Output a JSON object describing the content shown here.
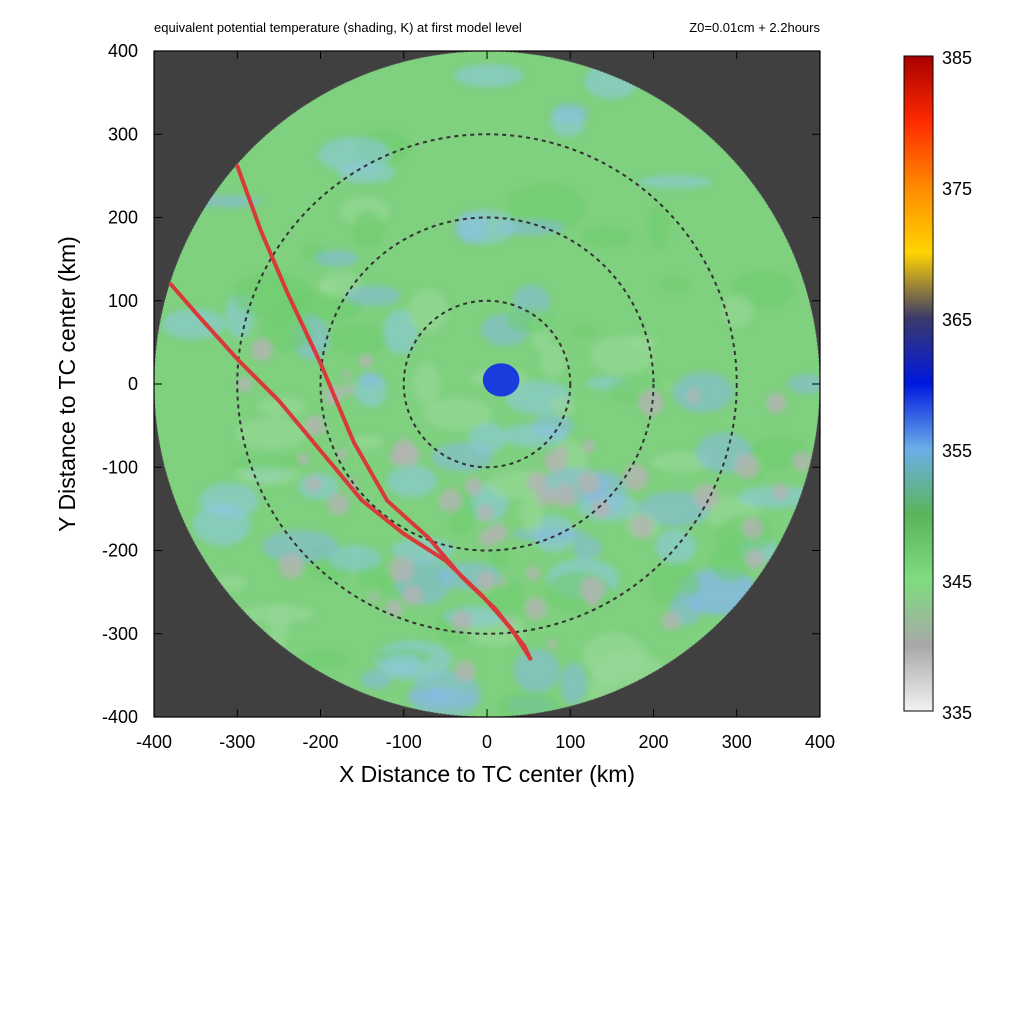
{
  "chart_data": {
    "type": "heatmap",
    "title": "equivalent potential temperature (shading, K) at first model level",
    "subtitle": "Z0=0.01cm  + 2.2hours",
    "xlabel": "X Distance to TC center (km)",
    "ylabel": "Y Distance to TC center (km)",
    "xlim": [
      -400,
      400
    ],
    "ylim": [
      -400,
      400
    ],
    "x_ticks": [
      -400,
      -300,
      -200,
      -100,
      0,
      100,
      200,
      300,
      400
    ],
    "y_ticks": [
      -400,
      -300,
      -200,
      -100,
      0,
      100,
      200,
      300,
      400
    ],
    "x_tick_labels": [
      "-400",
      "-300",
      "-200",
      "-100",
      "0",
      "100",
      "200",
      "300",
      "400"
    ],
    "y_tick_labels": [
      "-400",
      "-300",
      "-200",
      "-100",
      "0",
      "100",
      "200",
      "300",
      "400"
    ],
    "domain_radius_km": 400,
    "reference_circle_radii_km": [
      100,
      200,
      300
    ],
    "colorbar": {
      "min": 335,
      "max": 385,
      "tick_values": [
        335,
        345,
        355,
        365,
        375,
        385
      ],
      "tick_labels": [
        "335",
        "345",
        "355",
        "365",
        "375",
        "385"
      ],
      "colors": [
        "#f2f2f2",
        "#a8a8a8",
        "#7fdc7f",
        "#5ab55a",
        "#6aaee8",
        "#0018e0",
        "#3a3a6a",
        "#ffd400",
        "#ff8a00",
        "#ff2a00",
        "#a80000"
      ]
    },
    "background_color": "#404040",
    "dominant_field_color": "#7fd07f",
    "low_theta_e_color": "#b4b4b4",
    "core_color": "#1a3cdc",
    "core_center_km": [
      17,
      5
    ],
    "trajectory_color": "#d83a3a",
    "trajectories": [
      {
        "points": [
          [
            -300,
            262
          ],
          [
            -272,
            185
          ],
          [
            -240,
            110
          ],
          [
            -200,
            25
          ],
          [
            -160,
            -70
          ],
          [
            -120,
            -140
          ],
          [
            -70,
            -185
          ],
          [
            -30,
            -232
          ],
          [
            10,
            -270
          ],
          [
            45,
            -315
          ],
          [
            52,
            -330
          ]
        ]
      },
      {
        "points": [
          [
            -380,
            120
          ],
          [
            -345,
            80
          ],
          [
            -300,
            30
          ],
          [
            -250,
            -20
          ],
          [
            -200,
            -80
          ],
          [
            -150,
            -140
          ],
          [
            -100,
            -180
          ],
          [
            -50,
            -212
          ],
          [
            -5,
            -255
          ],
          [
            30,
            -295
          ],
          [
            52,
            -330
          ]
        ]
      }
    ]
  }
}
